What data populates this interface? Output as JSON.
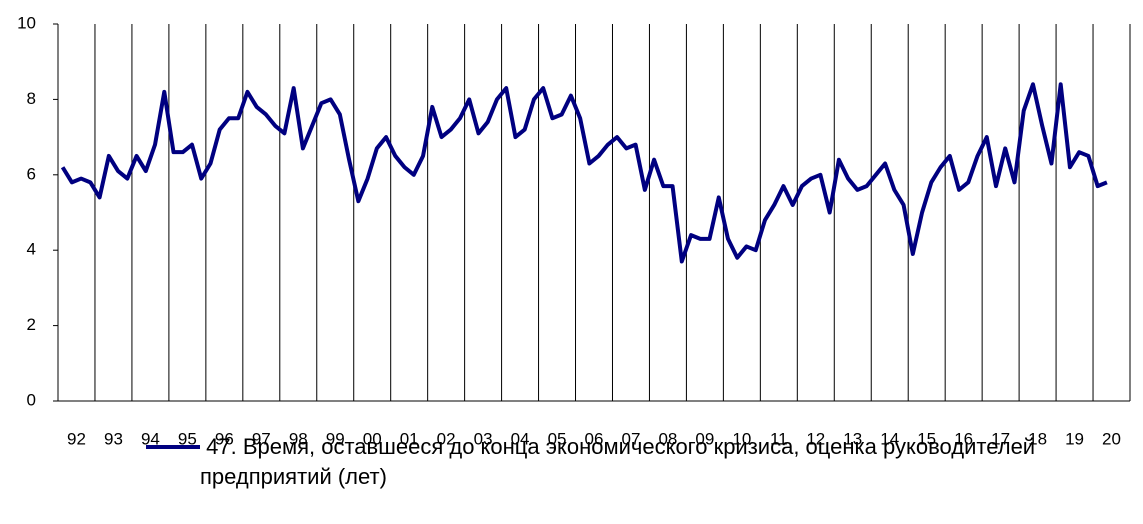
{
  "chart_data": {
    "type": "line",
    "categories": [
      "92",
      null,
      null,
      null,
      "93",
      null,
      null,
      null,
      "94",
      null,
      null,
      null,
      "95",
      null,
      null,
      null,
      "96",
      null,
      null,
      null,
      "97",
      null,
      null,
      null,
      "98",
      null,
      null,
      null,
      "99",
      null,
      null,
      null,
      "00",
      null,
      null,
      null,
      "01",
      null,
      null,
      null,
      "02",
      null,
      null,
      null,
      "03",
      null,
      null,
      null,
      "04",
      null,
      null,
      null,
      "05",
      null,
      null,
      null,
      "06",
      null,
      null,
      null,
      "07",
      null,
      null,
      null,
      "08",
      null,
      null,
      null,
      "09",
      null,
      null,
      null,
      "10",
      null,
      null,
      null,
      "11",
      null,
      null,
      null,
      "12",
      null,
      null,
      null,
      "13",
      null,
      null,
      null,
      "14",
      null,
      null,
      null,
      "15",
      null,
      null,
      null,
      "16",
      null,
      null,
      null,
      "17",
      null,
      null,
      null,
      "18",
      null,
      null,
      null,
      "19",
      null,
      null,
      null,
      "20",
      null
    ],
    "series": [
      {
        "name": " 47. Время, оставшееся до конца экономического кризиса, оценка руководителей предприятий (лет)",
        "color": "#000080",
        "values": [
          6.2,
          5.8,
          5.9,
          5.8,
          5.4,
          6.5,
          6.1,
          5.9,
          6.5,
          6.1,
          6.8,
          8.2,
          6.6,
          6.6,
          6.8,
          5.9,
          6.3,
          7.2,
          7.5,
          7.5,
          8.2,
          7.8,
          7.6,
          7.3,
          7.1,
          8.3,
          6.7,
          7.3,
          7.9,
          8.0,
          7.6,
          6.4,
          5.3,
          5.9,
          6.7,
          7.0,
          6.5,
          6.2,
          6.0,
          6.5,
          7.8,
          7.0,
          7.2,
          7.5,
          8.0,
          7.1,
          7.4,
          8.0,
          8.3,
          7.0,
          7.2,
          8.0,
          8.3,
          7.5,
          7.6,
          8.1,
          7.5,
          6.3,
          6.5,
          6.8,
          7.0,
          6.7,
          6.8,
          5.6,
          6.4,
          5.7,
          5.7,
          3.7,
          4.4,
          4.3,
          4.3,
          5.4,
          4.3,
          3.8,
          4.1,
          4.0,
          4.8,
          5.2,
          5.7,
          5.2,
          5.7,
          5.9,
          6.0,
          5.0,
          6.4,
          5.9,
          5.6,
          5.7,
          6.0,
          6.3,
          5.6,
          5.2,
          3.9,
          5.0,
          5.8,
          6.2,
          6.5,
          5.6,
          5.8,
          6.5,
          7.0,
          5.7,
          6.7,
          5.8,
          7.7,
          8.4,
          7.3,
          6.3,
          8.4,
          6.2,
          6.6,
          6.5,
          5.7,
          5.8
        ]
      }
    ],
    "ylim": [
      0,
      10
    ],
    "yticks": [
      0,
      2,
      4,
      6,
      8,
      10
    ],
    "grid": "vertical",
    "legend": "bottom"
  }
}
